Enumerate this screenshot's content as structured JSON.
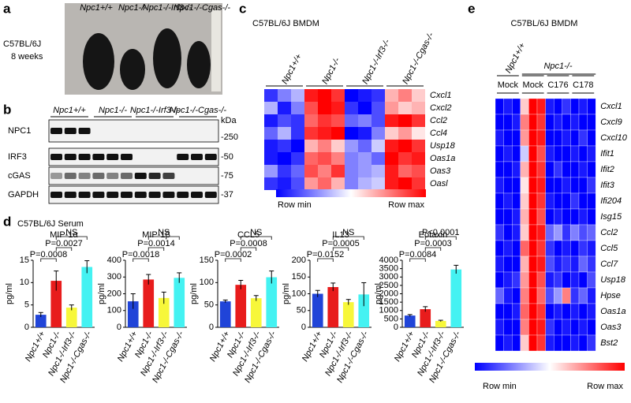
{
  "panels": {
    "a": {
      "letter": "a",
      "genotypes": [
        "Npc1+/+",
        "Npc1-/-",
        "Npc1-/-Irf3-/-",
        "Npc1-/-Cgas-/-"
      ],
      "strain": "C57BL/6J",
      "age": "8 weeks"
    },
    "b": {
      "letter": "b",
      "genotypes": [
        "Npc1+/+",
        "Npc1-/-",
        "Npc1-/-Irf3-/-",
        "Npc1-/-Cgas-/-"
      ],
      "proteins": [
        "NPC1",
        "IRF3",
        "cGAS",
        "GAPDH"
      ],
      "unit": "kDa",
      "markers": [
        "-250",
        "-50",
        "-75",
        "-37"
      ]
    },
    "c": {
      "letter": "c",
      "title": "C57BL/6J BMDM",
      "columns": [
        "Npc1+/+",
        "Npc1-/-",
        "Npc1-/-Irf3-/-",
        "Npc1-/-Cgas-/-"
      ],
      "genes": [
        "Cxcl1",
        "Cxcl2",
        "Ccl2",
        "Ccl4",
        "Usp18",
        "Oas1a",
        "Oas3",
        "Oasl"
      ],
      "values": [
        [
          -0.8,
          -0.5,
          -0.3,
          0.9,
          1,
          0.8,
          -1,
          -0.9,
          -0.8,
          0.3,
          0.5,
          0.2
        ],
        [
          -0.3,
          -0.9,
          -0.5,
          0.7,
          1,
          0.9,
          -0.8,
          -1,
          -0.7,
          0.4,
          0.2,
          0.3
        ],
        [
          -0.9,
          -0.7,
          -0.8,
          0.6,
          0.8,
          0.7,
          -0.6,
          -0.5,
          -0.7,
          0.9,
          1,
          0.8
        ],
        [
          -0.6,
          -0.3,
          -0.8,
          0.8,
          0.9,
          1,
          -1,
          -0.9,
          -0.5,
          0.2,
          0.4,
          0.1
        ],
        [
          -0.9,
          -0.8,
          -1,
          0.3,
          0.5,
          0.2,
          -0.4,
          -0.6,
          -0.2,
          0.9,
          1,
          0.8
        ],
        [
          -0.9,
          -1,
          -0.8,
          0.6,
          0.7,
          0.5,
          -0.5,
          -0.4,
          -0.6,
          1,
          0.8,
          0.9
        ],
        [
          -0.4,
          -0.8,
          -0.6,
          0.7,
          0.5,
          0.8,
          -0.5,
          -0.4,
          -0.3,
          0.9,
          0.6,
          0.7
        ],
        [
          -0.8,
          -0.9,
          -0.7,
          0.4,
          0.6,
          0.3,
          -0.5,
          -0.3,
          -0.2,
          0.9,
          1,
          0.8
        ]
      ],
      "scale_min": "Row min",
      "scale_max": "Row max"
    },
    "d": {
      "letter": "d",
      "title": "C57BL/6J  Serum"
    },
    "e": {
      "letter": "e",
      "title": "C57BL/6J BMDM",
      "groups": [
        "Npc1+/+",
        "Npc1-/-"
      ],
      "treatments": [
        "Mock",
        "Mock",
        "C176",
        "C178"
      ],
      "genes": [
        "Cxcl1",
        "Cxcl9",
        "Cxcl10",
        "Ifit1",
        "Ifit2",
        "Ifit3",
        "Ifi204",
        "Isg15",
        "Ccl2",
        "Ccl5",
        "Ccl7",
        "Usp18",
        "Hpse",
        "Oas1a",
        "Oas3",
        "Bst2"
      ],
      "values": [
        [
          -1,
          -0.9,
          -1,
          0.2,
          1,
          0.9,
          -0.9,
          -1,
          -0.8,
          -1,
          -0.9,
          -1
        ],
        [
          -1,
          -1,
          -0.9,
          0.5,
          1,
          0.8,
          -1,
          -0.9,
          -1,
          -0.9,
          -1,
          -1
        ],
        [
          -0.9,
          -1,
          -1,
          0.4,
          1,
          0.9,
          -1,
          -1,
          -0.9,
          -1,
          -0.8,
          -1
        ],
        [
          -1,
          -0.9,
          -1,
          -0.2,
          1,
          0.7,
          -0.9,
          -1,
          -1,
          -0.9,
          -1,
          -0.9
        ],
        [
          -1,
          -1,
          -0.9,
          0.3,
          1,
          0.8,
          -1,
          -0.8,
          -1,
          -1,
          -0.9,
          -1
        ],
        [
          -0.9,
          -1,
          -1,
          0.1,
          1,
          0.9,
          -1,
          -1,
          -0.9,
          -1,
          -1,
          -0.8
        ],
        [
          -1,
          -0.9,
          -1,
          0.2,
          1,
          0.8,
          -0.9,
          -1,
          -1,
          -0.8,
          -1,
          -1
        ],
        [
          -1,
          -1,
          -0.9,
          0.3,
          1,
          0.7,
          -1,
          -0.9,
          -1,
          -1,
          -0.9,
          -1
        ],
        [
          -0.8,
          -1,
          -0.9,
          0.2,
          1,
          0.9,
          -0.6,
          -0.4,
          -0.8,
          -0.5,
          -0.7,
          -0.6
        ],
        [
          -1,
          -0.9,
          -1,
          0.6,
          1,
          0.8,
          -0.8,
          -1,
          -0.9,
          -1,
          -0.8,
          -0.9
        ],
        [
          -0.9,
          -1,
          -1,
          0.3,
          1,
          0.9,
          -0.7,
          -0.9,
          -0.8,
          -0.9,
          -0.6,
          -0.8
        ],
        [
          -1,
          -0.9,
          -0.8,
          0.4,
          1,
          0.7,
          -0.9,
          -0.8,
          -1,
          -0.9,
          -1,
          -0.7
        ],
        [
          -0.6,
          -0.9,
          -1,
          0.5,
          1,
          0.6,
          -0.7,
          -0.4,
          0.5,
          -0.8,
          -0.6,
          -0.9
        ],
        [
          -1,
          -1,
          -0.9,
          0.6,
          1,
          0.8,
          -1,
          -0.9,
          -1,
          -0.9,
          -1,
          -0.9
        ],
        [
          -0.9,
          -1,
          -1,
          0.5,
          1,
          0.9,
          -0.8,
          -1,
          -0.9,
          -1,
          -0.9,
          -1
        ],
        [
          -1,
          -0.9,
          -1,
          0.2,
          1,
          0.8,
          -0.9,
          -1,
          -1,
          -0.9,
          -1,
          -0.8
        ]
      ],
      "scale_min": "Row min",
      "scale_max": "Row max"
    }
  },
  "chart_data": [
    {
      "type": "bar",
      "title": "MIP-1α",
      "ylabel": "pg/ml",
      "categories": [
        "Npc1+/+",
        "Npc1-/-",
        "Npc1-/-Irf3-/-",
        "Npc1-/-Cgas-/-"
      ],
      "values": [
        2.8,
        10.4,
        4.4,
        13.5
      ],
      "errors": [
        0.5,
        2.2,
        0.6,
        1.4
      ],
      "colors": [
        "#2044d8",
        "#e81c1c",
        "#f7f73a",
        "#44f2f2"
      ],
      "ylim": [
        0,
        15
      ],
      "yticks": [
        0,
        5,
        10,
        15
      ],
      "annotations": [
        "P=0.0008",
        "P=0.0027",
        "NS"
      ]
    },
    {
      "type": "bar",
      "title": "MIP-1β",
      "ylabel": "pg/ml",
      "categories": [
        "Npc1+/+",
        "Npc1-/-",
        "Npc1-/-Irf3-/-",
        "Npc1-/-Cgas-/-"
      ],
      "values": [
        155,
        285,
        175,
        295
      ],
      "errors": [
        45,
        30,
        35,
        30
      ],
      "colors": [
        "#2044d8",
        "#e81c1c",
        "#f7f73a",
        "#44f2f2"
      ],
      "ylim": [
        0,
        400
      ],
      "yticks": [
        0,
        100,
        200,
        300,
        400
      ],
      "annotations": [
        "P=0.0018",
        "P=0.0014",
        "NS"
      ]
    },
    {
      "type": "bar",
      "title": "CCL5",
      "ylabel": "pg/ml",
      "categories": [
        "Npc1+/+",
        "Npc1-/-",
        "Npc1-/-Irf3-/-",
        "Npc1-/-Cgas-/-"
      ],
      "values": [
        58,
        95,
        65,
        112
      ],
      "errors": [
        3,
        10,
        6,
        14
      ],
      "colors": [
        "#2044d8",
        "#e81c1c",
        "#f7f73a",
        "#44f2f2"
      ],
      "ylim": [
        0,
        150
      ],
      "yticks": [
        0,
        50,
        100,
        150
      ],
      "annotations": [
        "P=0.0002",
        "P=0.0008",
        "NS"
      ]
    },
    {
      "type": "bar",
      "title": "IL13",
      "ylabel": "pg/ml",
      "categories": [
        "Npc1+/+",
        "Npc1-/-",
        "Npc1-/-Irf3-/-",
        "Npc1-/-Cgas-/-"
      ],
      "values": [
        100,
        120,
        75,
        98
      ],
      "errors": [
        10,
        12,
        8,
        35
      ],
      "colors": [
        "#2044d8",
        "#e81c1c",
        "#f7f73a",
        "#44f2f2"
      ],
      "ylim": [
        0,
        200
      ],
      "yticks": [
        0,
        50,
        100,
        150,
        200
      ],
      "annotations": [
        "P=0.0152",
        "P=0.0005",
        "NS"
      ]
    },
    {
      "type": "bar",
      "title": "Eotaxin",
      "ylabel": "pg/ml",
      "categories": [
        "Npc1+/+",
        "Npc1-/-",
        "Npc1-/-Irf3-/-",
        "Npc1-/-Cgas-/-"
      ],
      "values": [
        700,
        1080,
        380,
        3450
      ],
      "errors": [
        60,
        150,
        40,
        250
      ],
      "colors": [
        "#2044d8",
        "#e81c1c",
        "#f7f73a",
        "#44f2f2"
      ],
      "ylim": [
        0,
        4000
      ],
      "yticks": [
        0,
        500,
        1000,
        1500,
        2000,
        2500,
        3000,
        3500,
        4000
      ],
      "annotations": [
        "P=0.0084",
        "P=0.0003",
        "P<0.0001"
      ]
    }
  ]
}
